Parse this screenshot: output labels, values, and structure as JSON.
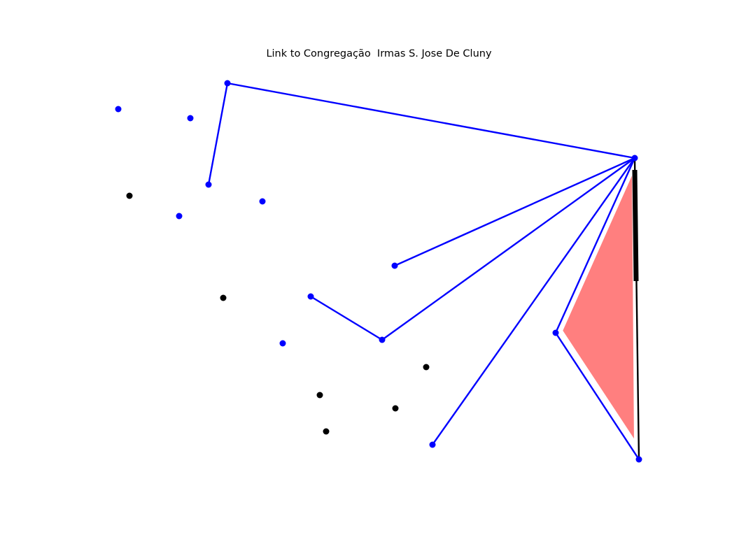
{
  "title": "Link to Congregação  Irmas S. Jose De Cluny",
  "colors": {
    "node_linked": "#0000ff",
    "node_unlinked": "#000000",
    "edge": "#0000ff",
    "black_edge": "#000000",
    "highlight_fill": "#ff7f7f"
  },
  "nodes": [
    {
      "id": "n1",
      "kind": "linked"
    },
    {
      "id": "n2",
      "kind": "linked"
    },
    {
      "id": "n3",
      "kind": "linked"
    },
    {
      "id": "hub",
      "kind": "linked"
    },
    {
      "id": "n5",
      "kind": "linked"
    },
    {
      "id": "n6",
      "kind": "unlinked"
    },
    {
      "id": "n7",
      "kind": "linked"
    },
    {
      "id": "n8",
      "kind": "linked"
    },
    {
      "id": "n9",
      "kind": "linked"
    },
    {
      "id": "n10",
      "kind": "unlinked"
    },
    {
      "id": "n11",
      "kind": "linked"
    },
    {
      "id": "n12",
      "kind": "linked"
    },
    {
      "id": "n13",
      "kind": "linked"
    },
    {
      "id": "n14",
      "kind": "linked"
    },
    {
      "id": "n15",
      "kind": "unlinked"
    },
    {
      "id": "n16",
      "kind": "unlinked"
    },
    {
      "id": "n17",
      "kind": "unlinked"
    },
    {
      "id": "n18",
      "kind": "unlinked"
    },
    {
      "id": "n19",
      "kind": "linked"
    },
    {
      "id": "n20",
      "kind": "linked"
    }
  ],
  "edges": [
    {
      "from": "n3",
      "to": "hub"
    },
    {
      "from": "n3",
      "to": "n5"
    },
    {
      "from": "n9",
      "to": "hub"
    },
    {
      "from": "n13",
      "to": "hub"
    },
    {
      "from": "n11",
      "to": "n13"
    },
    {
      "from": "n19",
      "to": "hub"
    },
    {
      "from": "n14",
      "to": "hub"
    },
    {
      "from": "n14",
      "to": "n20"
    }
  ],
  "black_edge": {
    "from": "hub",
    "to": "n20"
  },
  "highlight": {
    "from": "hub",
    "via": "n14",
    "to": "n20"
  }
}
